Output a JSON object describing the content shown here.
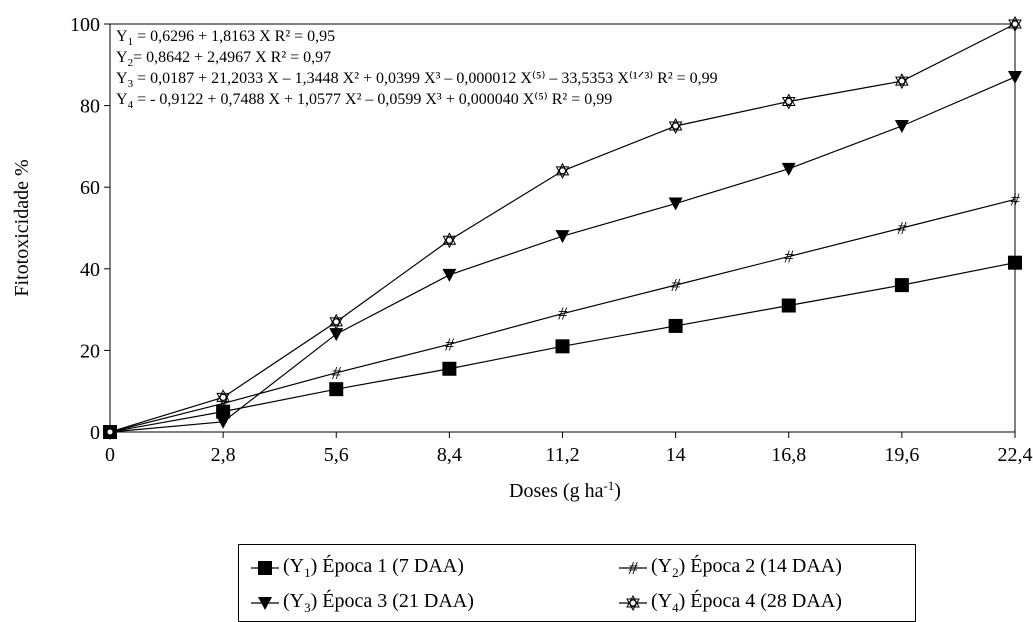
{
  "chart_data": {
    "type": "line",
    "ylabel": "Fitotoxicidade %",
    "xlabel_main": "Doses (g ha",
    "xlabel_sup": "-1",
    "xlabel_close": ")",
    "x": [
      0,
      2.8,
      5.6,
      8.4,
      11.2,
      14,
      16.8,
      19.6,
      22.4
    ],
    "x_tick_labels": [
      "0",
      "2,8",
      "5,6",
      "8,4",
      "11,2",
      "14",
      "16,8",
      "19,6",
      "22,4"
    ],
    "y_ticks": [
      0,
      20,
      40,
      60,
      80,
      100
    ],
    "y_tick_labels": [
      "0",
      "20",
      "40",
      "60",
      "80",
      "100"
    ],
    "ylim": [
      0,
      100
    ],
    "xlim": [
      0,
      22.4
    ],
    "grid": false,
    "legend_position": "bottom",
    "series": [
      {
        "key": "Y1",
        "marker": "square",
        "color": "#000000",
        "values": [
          0,
          5,
          10.5,
          15.5,
          21,
          26,
          31,
          36,
          41.5
        ],
        "legend": {
          "pre": "(Y",
          "sub": "1",
          "post": ") Época 1 (7 DAA)"
        }
      },
      {
        "key": "Y2",
        "marker": "hash",
        "color": "#000000",
        "values": [
          0,
          7,
          14.5,
          21.5,
          29,
          36,
          43,
          50,
          57
        ],
        "legend": {
          "pre": "(Y",
          "sub": "2",
          "post": ") Época 2 (14 DAA)"
        }
      },
      {
        "key": "Y3",
        "marker": "triangle-down",
        "color": "#000000",
        "values": [
          0,
          2.5,
          24,
          38.5,
          48,
          56,
          64.5,
          75,
          87
        ],
        "legend": {
          "pre": "(Y",
          "sub": "3",
          "post": ") Época 3 (21 DAA)"
        }
      },
      {
        "key": "Y4",
        "marker": "star",
        "color": "#000000",
        "values": [
          0,
          8.5,
          27,
          47,
          64,
          75,
          81,
          86,
          100
        ],
        "legend": {
          "pre": "(Y",
          "sub": "4",
          "post": ") Época 4 (28 DAA)"
        }
      }
    ],
    "equations": [
      {
        "sub": "1",
        "body": " = 0,6296 + 1,8163 X    R² = 0,95"
      },
      {
        "sub": "2",
        "body": "= 0,8642 + 2,4967 X    R² = 0,97"
      },
      {
        "sub": "3",
        "body": " = 0,0187 + 21,2033 X – 1,3448 X² + 0,0399 X³ – 0,000012 X⁽⁵⁾ – 33,5353 X⁽¹ᐟ³⁾  R² = 0,99"
      },
      {
        "sub": "4",
        "body": " = - 0,9122 + 0,7488 X + 1,0577 X² – 0,0599 X³ + 0,000040 X⁽⁵⁾  R² = 0,99"
      }
    ]
  }
}
